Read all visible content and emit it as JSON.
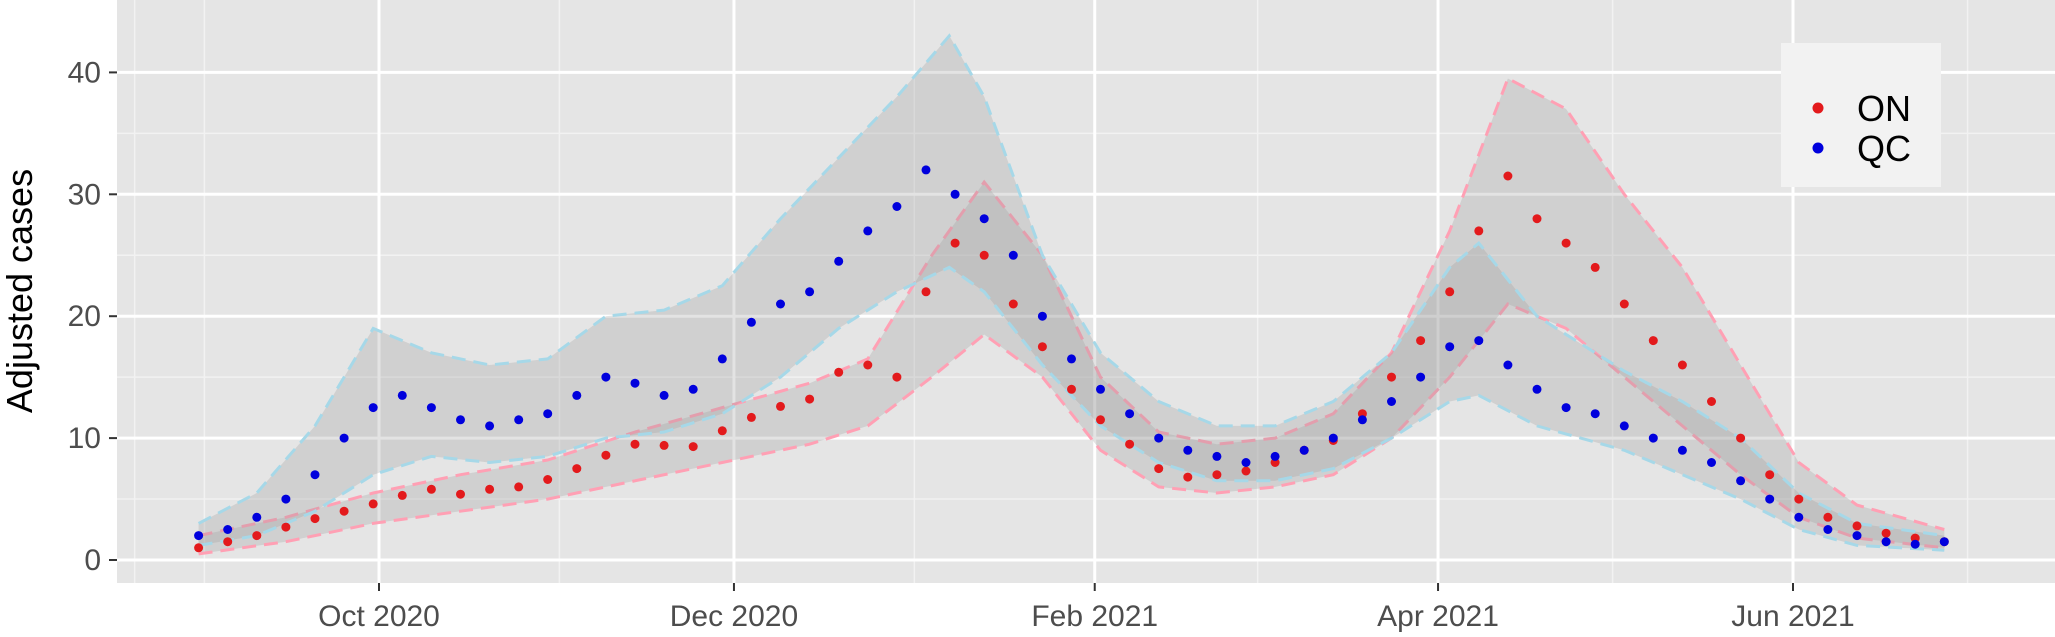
{
  "chart_data": {
    "type": "scatter",
    "title": "",
    "xlabel": "",
    "ylabel": "Adjusted cases",
    "x_range": [
      "2020-08-15",
      "2021-07-30"
    ],
    "ylim": [
      -2,
      45
    ],
    "x_ticks": [
      {
        "date": "2020-10-01",
        "label": "Oct 2020"
      },
      {
        "date": "2020-12-01",
        "label": "Dec 2020"
      },
      {
        "date": "2021-02-01",
        "label": "Feb 2021"
      },
      {
        "date": "2021-04-01",
        "label": "Apr 2021"
      },
      {
        "date": "2021-06-01",
        "label": "Jun 2021"
      }
    ],
    "x_minor_ticks": [
      "2020-09-01",
      "2020-11-01",
      "2021-01-01",
      "2021-03-01",
      "2021-05-01",
      "2021-07-01"
    ],
    "y_ticks": [
      0,
      10,
      20,
      30,
      40
    ],
    "grid": true,
    "legend": {
      "position": "top-right"
    },
    "series": [
      {
        "name": "ON",
        "point_color": "#e31a1c",
        "band_color": "#ffa0b4",
        "points": [
          [
            "2020-08-31",
            1.0
          ],
          [
            "2020-09-05",
            1.5
          ],
          [
            "2020-09-10",
            2.0
          ],
          [
            "2020-09-15",
            2.7
          ],
          [
            "2020-09-20",
            3.4
          ],
          [
            "2020-09-25",
            4.0
          ],
          [
            "2020-09-30",
            4.6
          ],
          [
            "2020-10-05",
            5.3
          ],
          [
            "2020-10-10",
            5.8
          ],
          [
            "2020-10-15",
            5.4
          ],
          [
            "2020-10-20",
            5.8
          ],
          [
            "2020-10-25",
            6.0
          ],
          [
            "2020-10-30",
            6.6
          ],
          [
            "2020-11-04",
            7.5
          ],
          [
            "2020-11-09",
            8.6
          ],
          [
            "2020-11-14",
            9.5
          ],
          [
            "2020-11-19",
            9.4
          ],
          [
            "2020-11-24",
            9.3
          ],
          [
            "2020-11-29",
            10.6
          ],
          [
            "2020-12-04",
            11.7
          ],
          [
            "2020-12-09",
            12.6
          ],
          [
            "2020-12-14",
            13.2
          ],
          [
            "2020-12-19",
            15.4
          ],
          [
            "2020-12-24",
            16.0
          ],
          [
            "2020-12-29",
            15.0
          ],
          [
            "2021-01-03",
            22.0
          ],
          [
            "2021-01-08",
            26.0
          ],
          [
            "2021-01-13",
            25.0
          ],
          [
            "2021-01-18",
            21.0
          ],
          [
            "2021-01-23",
            17.5
          ],
          [
            "2021-01-28",
            14.0
          ],
          [
            "2021-02-02",
            11.5
          ],
          [
            "2021-02-07",
            9.5
          ],
          [
            "2021-02-12",
            7.5
          ],
          [
            "2021-02-17",
            6.8
          ],
          [
            "2021-02-22",
            7.0
          ],
          [
            "2021-02-27",
            7.3
          ],
          [
            "2021-03-04",
            8.0
          ],
          [
            "2021-03-09",
            9.0
          ],
          [
            "2021-03-14",
            9.8
          ],
          [
            "2021-03-19",
            12.0
          ],
          [
            "2021-03-24",
            15.0
          ],
          [
            "2021-03-29",
            18.0
          ],
          [
            "2021-04-03",
            22.0
          ],
          [
            "2021-04-08",
            27.0
          ],
          [
            "2021-04-13",
            31.5
          ],
          [
            "2021-04-18",
            28.0
          ],
          [
            "2021-04-23",
            26.0
          ],
          [
            "2021-04-28",
            24.0
          ],
          [
            "2021-05-03",
            21.0
          ],
          [
            "2021-05-08",
            18.0
          ],
          [
            "2021-05-13",
            16.0
          ],
          [
            "2021-05-18",
            13.0
          ],
          [
            "2021-05-23",
            10.0
          ],
          [
            "2021-05-28",
            7.0
          ],
          [
            "2021-06-02",
            5.0
          ],
          [
            "2021-06-07",
            3.5
          ],
          [
            "2021-06-12",
            2.8
          ],
          [
            "2021-06-17",
            2.2
          ],
          [
            "2021-06-22",
            1.8
          ],
          [
            "2021-06-27",
            1.5
          ]
        ],
        "band_upper": [
          [
            "2020-08-31",
            2.0
          ],
          [
            "2020-09-15",
            3.5
          ],
          [
            "2020-09-30",
            5.5
          ],
          [
            "2020-10-15",
            7.0
          ],
          [
            "2020-10-30",
            8.2
          ],
          [
            "2020-11-14",
            10.5
          ],
          [
            "2020-11-29",
            12.5
          ],
          [
            "2020-12-14",
            14.5
          ],
          [
            "2020-12-24",
            16.5
          ],
          [
            "2021-01-04",
            25.0
          ],
          [
            "2021-01-13",
            31.0
          ],
          [
            "2021-01-23",
            25.0
          ],
          [
            "2021-02-02",
            15.0
          ],
          [
            "2021-02-12",
            10.5
          ],
          [
            "2021-02-22",
            9.5
          ],
          [
            "2021-03-04",
            10.0
          ],
          [
            "2021-03-14",
            12.0
          ],
          [
            "2021-03-24",
            17.0
          ],
          [
            "2021-04-03",
            27.0
          ],
          [
            "2021-04-13",
            39.5
          ],
          [
            "2021-04-23",
            37.0
          ],
          [
            "2021-05-03",
            30.0
          ],
          [
            "2021-05-13",
            24.0
          ],
          [
            "2021-05-23",
            16.0
          ],
          [
            "2021-06-02",
            8.0
          ],
          [
            "2021-06-12",
            4.5
          ],
          [
            "2021-06-27",
            2.5
          ]
        ],
        "band_lower": [
          [
            "2020-08-31",
            0.5
          ],
          [
            "2020-09-15",
            1.5
          ],
          [
            "2020-09-30",
            3.0
          ],
          [
            "2020-10-15",
            4.0
          ],
          [
            "2020-10-30",
            5.0
          ],
          [
            "2020-11-14",
            6.5
          ],
          [
            "2020-11-29",
            8.0
          ],
          [
            "2020-12-14",
            9.5
          ],
          [
            "2020-12-24",
            11.0
          ],
          [
            "2021-01-04",
            15.0
          ],
          [
            "2021-01-13",
            18.5
          ],
          [
            "2021-01-23",
            15.0
          ],
          [
            "2021-02-02",
            9.0
          ],
          [
            "2021-02-12",
            6.0
          ],
          [
            "2021-02-22",
            5.5
          ],
          [
            "2021-03-04",
            6.0
          ],
          [
            "2021-03-14",
            7.0
          ],
          [
            "2021-03-24",
            10.0
          ],
          [
            "2021-04-03",
            15.0
          ],
          [
            "2021-04-13",
            21.0
          ],
          [
            "2021-04-23",
            19.0
          ],
          [
            "2021-05-03",
            15.0
          ],
          [
            "2021-05-13",
            11.0
          ],
          [
            "2021-05-23",
            7.0
          ],
          [
            "2021-06-02",
            3.5
          ],
          [
            "2021-06-12",
            1.8
          ],
          [
            "2021-06-27",
            1.0
          ]
        ]
      },
      {
        "name": "QC",
        "point_color": "#0000dd",
        "band_color": "#a6d8e8",
        "points": [
          [
            "2020-08-31",
            2.0
          ],
          [
            "2020-09-05",
            2.5
          ],
          [
            "2020-09-10",
            3.5
          ],
          [
            "2020-09-15",
            5.0
          ],
          [
            "2020-09-20",
            7.0
          ],
          [
            "2020-09-25",
            10.0
          ],
          [
            "2020-09-30",
            12.5
          ],
          [
            "2020-10-05",
            13.5
          ],
          [
            "2020-10-10",
            12.5
          ],
          [
            "2020-10-15",
            11.5
          ],
          [
            "2020-10-20",
            11.0
          ],
          [
            "2020-10-25",
            11.5
          ],
          [
            "2020-10-30",
            12.0
          ],
          [
            "2020-11-04",
            13.5
          ],
          [
            "2020-11-09",
            15.0
          ],
          [
            "2020-11-14",
            14.5
          ],
          [
            "2020-11-19",
            13.5
          ],
          [
            "2020-11-24",
            14.0
          ],
          [
            "2020-11-29",
            16.5
          ],
          [
            "2020-12-04",
            19.5
          ],
          [
            "2020-12-09",
            21.0
          ],
          [
            "2020-12-14",
            22.0
          ],
          [
            "2020-12-19",
            24.5
          ],
          [
            "2020-12-24",
            27.0
          ],
          [
            "2020-12-29",
            29.0
          ],
          [
            "2021-01-03",
            32.0
          ],
          [
            "2021-01-08",
            30.0
          ],
          [
            "2021-01-13",
            28.0
          ],
          [
            "2021-01-18",
            25.0
          ],
          [
            "2021-01-23",
            20.0
          ],
          [
            "2021-01-28",
            16.5
          ],
          [
            "2021-02-02",
            14.0
          ],
          [
            "2021-02-07",
            12.0
          ],
          [
            "2021-02-12",
            10.0
          ],
          [
            "2021-02-17",
            9.0
          ],
          [
            "2021-02-22",
            8.5
          ],
          [
            "2021-02-27",
            8.0
          ],
          [
            "2021-03-04",
            8.5
          ],
          [
            "2021-03-09",
            9.0
          ],
          [
            "2021-03-14",
            10.0
          ],
          [
            "2021-03-19",
            11.5
          ],
          [
            "2021-03-24",
            13.0
          ],
          [
            "2021-03-29",
            15.0
          ],
          [
            "2021-04-03",
            17.5
          ],
          [
            "2021-04-08",
            18.0
          ],
          [
            "2021-04-13",
            16.0
          ],
          [
            "2021-04-18",
            14.0
          ],
          [
            "2021-04-23",
            12.5
          ],
          [
            "2021-04-28",
            12.0
          ],
          [
            "2021-05-03",
            11.0
          ],
          [
            "2021-05-08",
            10.0
          ],
          [
            "2021-05-13",
            9.0
          ],
          [
            "2021-05-18",
            8.0
          ],
          [
            "2021-05-23",
            6.5
          ],
          [
            "2021-05-28",
            5.0
          ],
          [
            "2021-06-02",
            3.5
          ],
          [
            "2021-06-07",
            2.5
          ],
          [
            "2021-06-12",
            2.0
          ],
          [
            "2021-06-17",
            1.5
          ],
          [
            "2021-06-22",
            1.3
          ],
          [
            "2021-06-27",
            1.5
          ]
        ],
        "band_upper": [
          [
            "2020-08-31",
            3.0
          ],
          [
            "2020-09-10",
            5.5
          ],
          [
            "2020-09-20",
            11.0
          ],
          [
            "2020-09-30",
            19.0
          ],
          [
            "2020-10-10",
            17.0
          ],
          [
            "2020-10-20",
            16.0
          ],
          [
            "2020-10-30",
            16.5
          ],
          [
            "2020-11-09",
            20.0
          ],
          [
            "2020-11-19",
            20.5
          ],
          [
            "2020-11-29",
            22.5
          ],
          [
            "2020-12-09",
            28.0
          ],
          [
            "2020-12-19",
            33.0
          ],
          [
            "2020-12-29",
            38.0
          ],
          [
            "2021-01-07",
            43.0
          ],
          [
            "2021-01-13",
            38.0
          ],
          [
            "2021-01-23",
            25.0
          ],
          [
            "2021-02-02",
            17.0
          ],
          [
            "2021-02-12",
            13.0
          ],
          [
            "2021-02-22",
            11.0
          ],
          [
            "2021-03-04",
            11.0
          ],
          [
            "2021-03-14",
            13.0
          ],
          [
            "2021-03-24",
            17.0
          ],
          [
            "2021-04-03",
            24.0
          ],
          [
            "2021-04-08",
            26.0
          ],
          [
            "2021-04-18",
            20.0
          ],
          [
            "2021-05-03",
            15.5
          ],
          [
            "2021-05-13",
            13.0
          ],
          [
            "2021-05-23",
            10.0
          ],
          [
            "2021-06-02",
            5.5
          ],
          [
            "2021-06-12",
            3.0
          ],
          [
            "2021-06-27",
            2.0
          ]
        ],
        "band_lower": [
          [
            "2020-08-31",
            1.2
          ],
          [
            "2020-09-10",
            2.0
          ],
          [
            "2020-09-20",
            4.0
          ],
          [
            "2020-09-30",
            7.0
          ],
          [
            "2020-10-10",
            8.5
          ],
          [
            "2020-10-20",
            8.0
          ],
          [
            "2020-10-30",
            8.5
          ],
          [
            "2020-11-09",
            10.0
          ],
          [
            "2020-11-19",
            10.5
          ],
          [
            "2020-11-29",
            12.0
          ],
          [
            "2020-12-09",
            15.0
          ],
          [
            "2020-12-19",
            19.0
          ],
          [
            "2020-12-29",
            22.0
          ],
          [
            "2021-01-07",
            24.0
          ],
          [
            "2021-01-13",
            22.0
          ],
          [
            "2021-01-23",
            16.0
          ],
          [
            "2021-02-02",
            11.0
          ],
          [
            "2021-02-12",
            8.0
          ],
          [
            "2021-02-22",
            6.5
          ],
          [
            "2021-03-04",
            6.5
          ],
          [
            "2021-03-14",
            7.5
          ],
          [
            "2021-03-24",
            10.0
          ],
          [
            "2021-04-03",
            13.0
          ],
          [
            "2021-04-08",
            13.5
          ],
          [
            "2021-04-18",
            11.0
          ],
          [
            "2021-05-03",
            9.0
          ],
          [
            "2021-05-13",
            7.0
          ],
          [
            "2021-05-23",
            5.0
          ],
          [
            "2021-06-02",
            2.5
          ],
          [
            "2021-06-12",
            1.2
          ],
          [
            "2021-06-27",
            0.8
          ]
        ]
      }
    ]
  }
}
